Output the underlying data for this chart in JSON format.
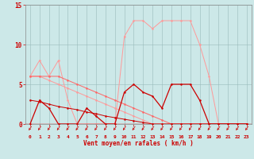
{
  "hours": [
    0,
    1,
    2,
    3,
    4,
    5,
    6,
    7,
    8,
    9,
    10,
    11,
    12,
    13,
    14,
    15,
    16,
    17,
    18,
    19,
    20,
    21,
    22,
    23
  ],
  "bg_color": "#cce8e8",
  "color_dark_red": "#cc0000",
  "color_light_pink": "#ff9999",
  "color_med_pink": "#ff6666",
  "xlabel": "Vent moyen/en rafales ( km/h )",
  "yticks": [
    0,
    5,
    10,
    15
  ],
  "series": {
    "light_gust": [
      6,
      8,
      6,
      8,
      3,
      0,
      0,
      0,
      0,
      0,
      11,
      13,
      13,
      12,
      13,
      13,
      13,
      13,
      10,
      6,
      0,
      0,
      0,
      0
    ],
    "light_decline1": [
      6,
      6,
      5.5,
      5.0,
      4.5,
      4.0,
      3.5,
      3.0,
      2.5,
      2.0,
      1.5,
      1.0,
      0.5,
      0,
      0,
      0,
      0,
      0,
      0,
      0,
      0,
      0,
      0,
      0
    ],
    "light_decline2": [
      6,
      6,
      6,
      6,
      5.5,
      5.0,
      4.5,
      4.0,
      3.5,
      3.0,
      2.5,
      2.0,
      1.5,
      1.0,
      0.5,
      0,
      0,
      0,
      0,
      0,
      0,
      0,
      0,
      0
    ],
    "dark_wind": [
      0,
      3,
      2,
      0,
      0,
      0,
      2,
      1,
      0,
      0,
      4,
      5,
      4,
      3.5,
      2,
      5,
      5,
      5,
      3,
      0,
      0,
      0,
      0,
      0
    ],
    "dark_decline": [
      3,
      2.8,
      2.5,
      2.2,
      2.0,
      1.8,
      1.5,
      1.3,
      1.0,
      0.8,
      0.6,
      0.4,
      0.2,
      0,
      0,
      0,
      0,
      0,
      0,
      0,
      0,
      0,
      0,
      0
    ]
  }
}
